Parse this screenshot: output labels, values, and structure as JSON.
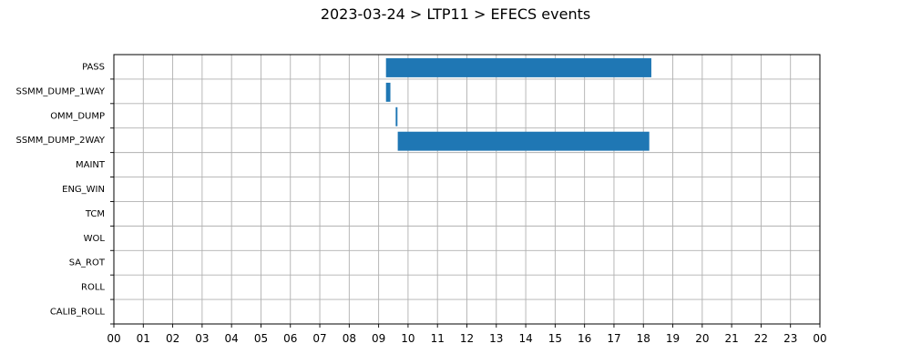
{
  "chart_data": {
    "type": "bar",
    "orientation": "horizontal-timeline",
    "title": "2023-03-24 > LTP11 > EFECS events",
    "xlabel": "",
    "ylabel": "",
    "x_unit": "hour of day",
    "xlim": [
      0,
      24
    ],
    "x_tick_labels": [
      "00",
      "01",
      "02",
      "03",
      "04",
      "05",
      "06",
      "07",
      "08",
      "09",
      "10",
      "11",
      "12",
      "13",
      "14",
      "15",
      "16",
      "17",
      "18",
      "19",
      "20",
      "21",
      "22",
      "23",
      "00"
    ],
    "categories": [
      "PASS",
      "SSMM_DUMP_1WAY",
      "OMM_DUMP",
      "SSMM_DUMP_2WAY",
      "MAINT",
      "ENG_WIN",
      "TCM",
      "WOL",
      "SA_ROT",
      "ROLL",
      "CALIB_ROLL"
    ],
    "grid": true,
    "bar_color": "#1f77b4",
    "events": [
      {
        "category": "PASS",
        "start": 9.25,
        "end": 18.27
      },
      {
        "category": "SSMM_DUMP_1WAY",
        "start": 9.25,
        "end": 9.4
      },
      {
        "category": "OMM_DUMP",
        "start": 9.58,
        "end": 9.64
      },
      {
        "category": "SSMM_DUMP_2WAY",
        "start": 9.65,
        "end": 18.2
      }
    ]
  }
}
